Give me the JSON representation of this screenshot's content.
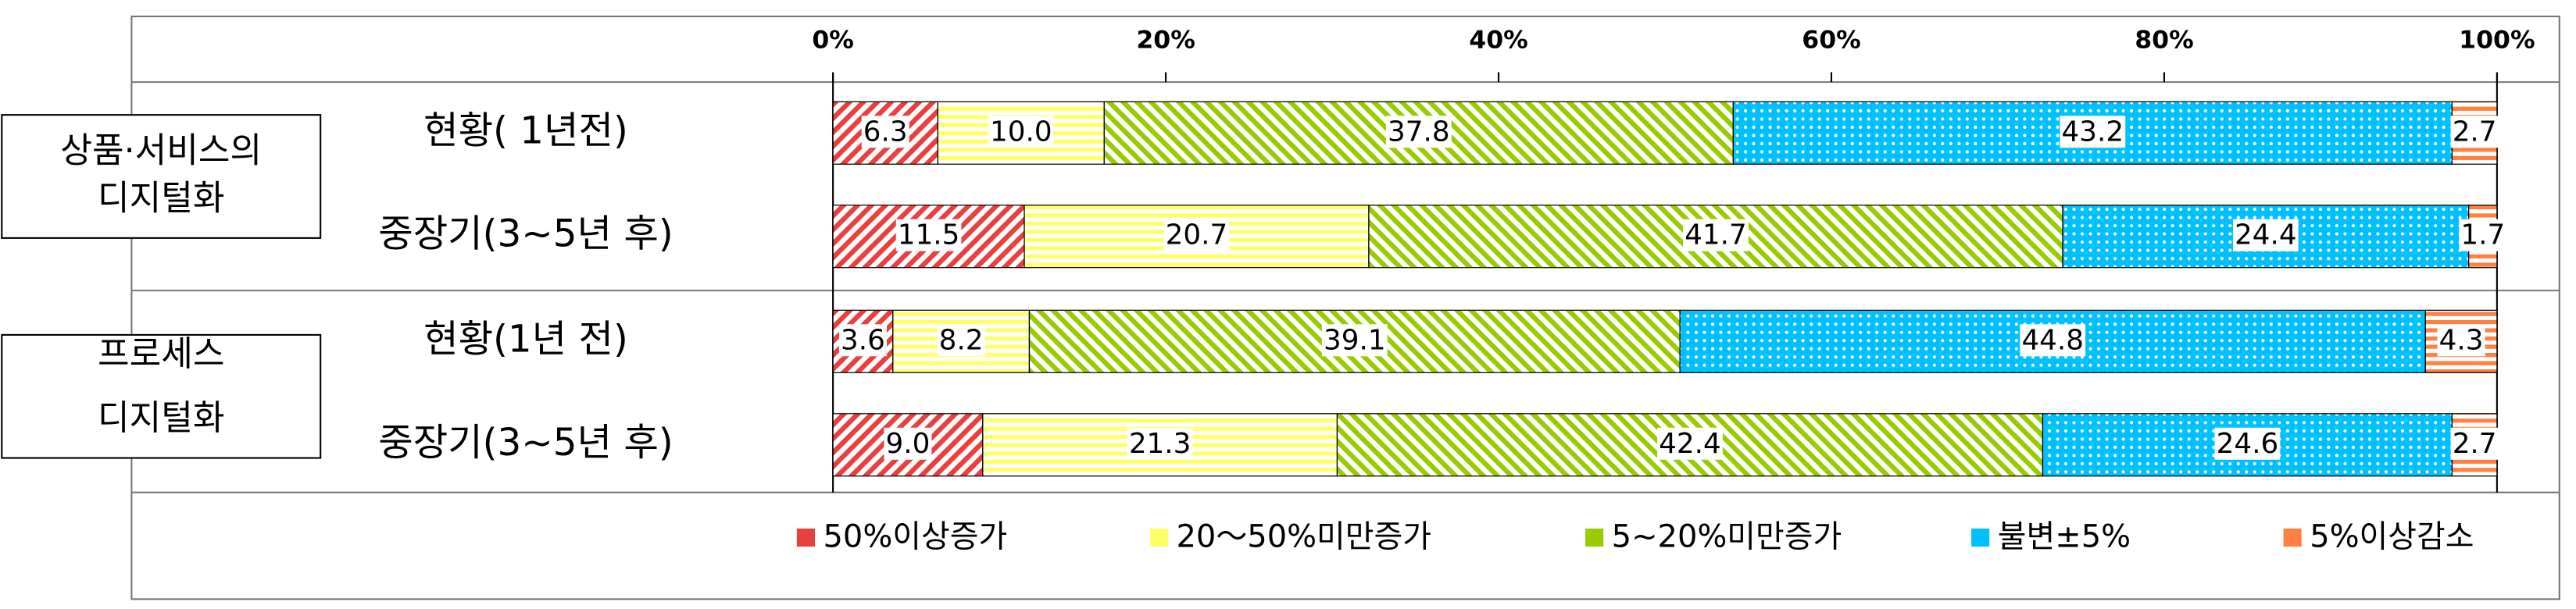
{
  "chart_data": {
    "type": "stacked_barh",
    "categories": [
      "현황( 1년전)",
      "중장기(3~5년 후)",
      "현황(1년 전)",
      "중장기(3~5년 후)"
    ],
    "groups": [
      [
        "상품·서비스의",
        "디지털화"
      ],
      [
        "프로세스",
        "디지털화"
      ]
    ],
    "xlim": [
      0,
      100
    ],
    "xticks": [
      {
        "value": 0,
        "label": "0%"
      },
      {
        "value": 20,
        "label": "20%"
      },
      {
        "value": 40,
        "label": "40%"
      },
      {
        "value": 60,
        "label": "60%"
      },
      {
        "value": 80,
        "label": "80%"
      },
      {
        "value": 100,
        "label": "100%"
      }
    ],
    "series": [
      {
        "name": "50%이상증가",
        "color": "#e8403f",
        "values": [
          6.3,
          11.5,
          3.6,
          9.0
        ],
        "value_labels": [
          "6.3",
          "11.5",
          "3.6",
          "9.0"
        ]
      },
      {
        "name": "20～50%미만증가",
        "color": "#ffff66",
        "values": [
          10.0,
          20.7,
          8.2,
          21.3
        ],
        "value_labels": [
          "10.0",
          "20.7",
          "8.2",
          "21.3"
        ]
      },
      {
        "name": "5~20%미만증가",
        "color": "#99cc00",
        "values": [
          37.8,
          41.7,
          39.1,
          42.4
        ],
        "value_labels": [
          "37.8",
          "41.7",
          "39.1",
          "42.4"
        ]
      },
      {
        "name": "불변±5%",
        "color": "#00c0ff",
        "values": [
          43.2,
          24.4,
          44.8,
          24.6
        ],
        "value_labels": [
          "43.2",
          "24.4",
          "44.8",
          "24.6"
        ]
      },
      {
        "name": "5%이상감소",
        "color": "#ff8040",
        "values": [
          2.7,
          1.7,
          4.3,
          2.7
        ],
        "value_labels": [
          "2.7",
          "1.7",
          "4.3",
          "2.7"
        ]
      }
    ]
  }
}
